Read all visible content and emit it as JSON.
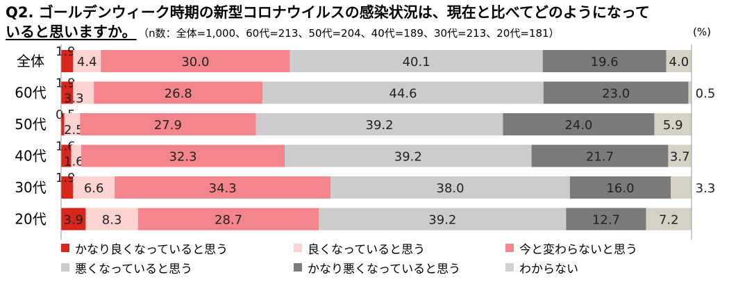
{
  "title": {
    "line1": "Q2. ゴールデンウィーク時期の新型コロナウイルスの感染状況は、現在と比べてどのようになって",
    "line2": "いると思いますか。",
    "sample_note": "（n数：全体=1,000、60代=213、50代=204、40代=189、30代=213、20代=181）",
    "unit": "(%)"
  },
  "colors": {
    "かなり良くなっていると思う": "#d9261c",
    "良くなっていると思う": "#fcd3d0",
    "今と変わらないと思う": "#f4858c",
    "悪くなっていると思う": "#cccccc",
    "かなり悪くなっていると思う": "#7a7a7a",
    "わからない": "#d6d1c5"
  },
  "chart_data": {
    "type": "bar",
    "orientation": "horizontal",
    "stacked": true,
    "percent": true,
    "categories": [
      "全体",
      "60代",
      "50代",
      "40代",
      "30代",
      "20代"
    ],
    "series": [
      {
        "name": "かなり良くなっていると思う",
        "values": [
          1.9,
          1.9,
          0.5,
          1.6,
          1.9,
          3.9
        ]
      },
      {
        "name": "良くなっていると思う",
        "values": [
          4.4,
          3.3,
          2.5,
          1.6,
          6.6,
          8.3
        ]
      },
      {
        "name": "今と変わらないと思う",
        "values": [
          30.0,
          26.8,
          27.9,
          32.3,
          34.3,
          28.7
        ]
      },
      {
        "name": "悪くなっていると思う",
        "values": [
          40.1,
          44.6,
          39.2,
          39.2,
          38.0,
          39.2
        ]
      },
      {
        "name": "かなり悪くなっていると思う",
        "values": [
          19.6,
          23.0,
          24.0,
          21.7,
          16.0,
          12.7
        ]
      },
      {
        "name": "わからない",
        "values": [
          4.0,
          0.5,
          5.9,
          3.7,
          3.3,
          7.2
        ]
      }
    ],
    "legend_position": "bottom",
    "grid": false
  }
}
